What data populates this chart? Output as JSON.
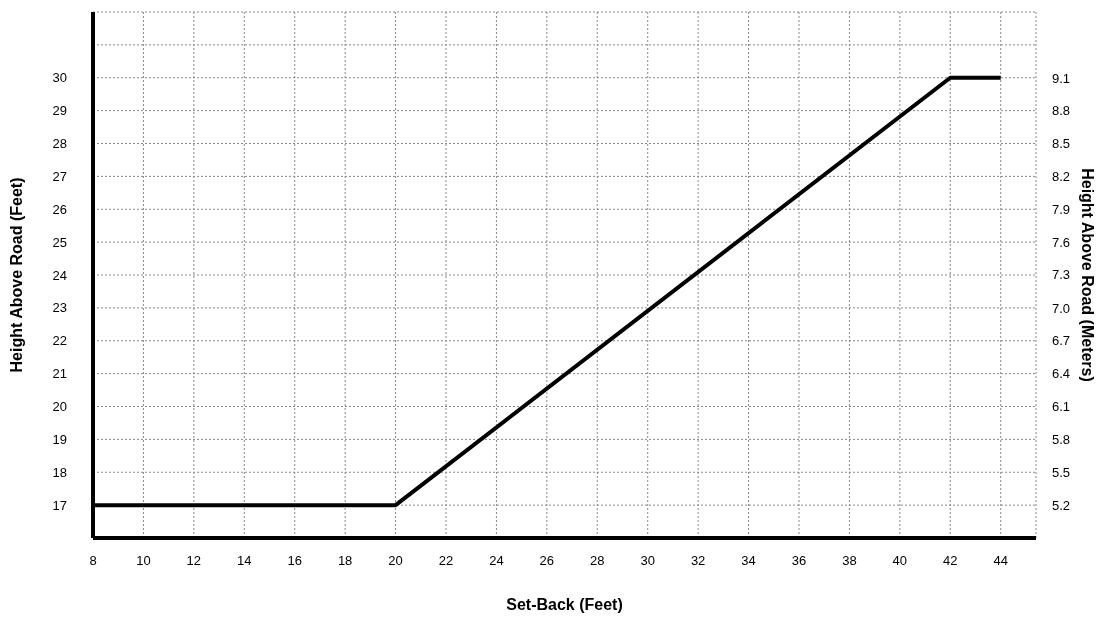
{
  "chart_data": {
    "type": "line",
    "xlabel": "Set-Back (Feet)",
    "ylabel": "Height Above Road (Feet)",
    "y2label": "Height Above Road (Meters)",
    "x": [
      8,
      20,
      42,
      44
    ],
    "series": [
      {
        "color": "#000000",
        "values": [
          17,
          17,
          30,
          30
        ]
      }
    ],
    "xlim": [
      8,
      45.4
    ],
    "xticks": [
      8,
      10,
      12,
      14,
      16,
      18,
      20,
      22,
      24,
      26,
      28,
      30,
      32,
      34,
      36,
      38,
      40,
      42,
      44
    ],
    "ylim": [
      16,
      32
    ],
    "yticks": [
      17,
      18,
      19,
      20,
      21,
      22,
      23,
      24,
      25,
      26,
      27,
      28,
      29,
      30,
      {
        "value": 31,
        "label": null
      }
    ],
    "y2lim": [
      4.88,
      9.75
    ],
    "y2ticks": [
      {
        "value": 5.18,
        "label": "5.2"
      },
      {
        "value": 5.49,
        "label": "5.5"
      },
      {
        "value": 5.79,
        "label": "5.8"
      },
      {
        "value": 6.1,
        "label": "6.1"
      },
      {
        "value": 6.4,
        "label": "6.4"
      },
      {
        "value": 6.71,
        "label": "6.7"
      },
      {
        "value": 7.01,
        "label": "7.0"
      },
      {
        "value": 7.32,
        "label": "7.3"
      },
      {
        "value": 7.62,
        "label": "7.6"
      },
      {
        "value": 7.92,
        "label": "7.9"
      },
      {
        "value": 8.23,
        "label": "8.2"
      },
      {
        "value": 8.53,
        "label": "8.5"
      },
      {
        "value": 8.84,
        "label": "8.8"
      },
      {
        "value": 9.14,
        "label": "9.1"
      }
    ],
    "grid": true,
    "marker": "none",
    "line_style": "solid"
  }
}
